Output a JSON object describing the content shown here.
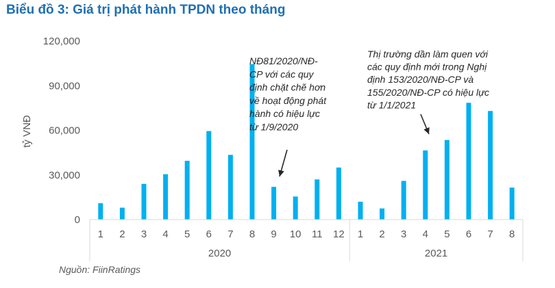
{
  "chart_data": {
    "type": "bar",
    "title": "Biểu đồ 3: Giá trị phát hành TPDN theo tháng",
    "ylabel": "tỷ VNĐ",
    "xlabel": "",
    "ylim": [
      0,
      120000
    ],
    "yticks": [
      0,
      30000,
      60000,
      90000,
      120000
    ],
    "ytick_labels": [
      "0",
      "30,000",
      "60,000",
      "90,000",
      "120,000"
    ],
    "grid": false,
    "bar_color": "#00b0f0",
    "groups": [
      {
        "label": "2020",
        "categories": [
          "1",
          "2",
          "3",
          "4",
          "5",
          "6",
          "7",
          "8",
          "9",
          "10",
          "11",
          "12"
        ],
        "values": [
          11000,
          8000,
          24000,
          30500,
          39500,
          59500,
          43500,
          104500,
          22000,
          15500,
          27000,
          35000
        ]
      },
      {
        "label": "2021",
        "categories": [
          "1",
          "2",
          "3",
          "4",
          "5",
          "6",
          "7",
          "8"
        ],
        "values": [
          12000,
          7500,
          26000,
          46500,
          53500,
          78500,
          73000,
          21500
        ]
      }
    ],
    "annotations": [
      {
        "target": "2020-9",
        "lines": [
          "NĐ81/2020/NĐ-",
          "CP với các quy",
          "định chặt chẽ hơn",
          "về hoạt động phát",
          "hành có hiệu lực",
          "từ 1/9/2020"
        ]
      },
      {
        "target": "2021-4",
        "lines": [
          "Thị trường dần làm quen với",
          "các quy định mới trong Nghị",
          "định 153/2020/NĐ-CP và",
          "155/2020/NĐ-CP có hiệu lực",
          "từ 1/1/2021"
        ]
      }
    ],
    "source": "Nguồn: FiinRatings"
  }
}
